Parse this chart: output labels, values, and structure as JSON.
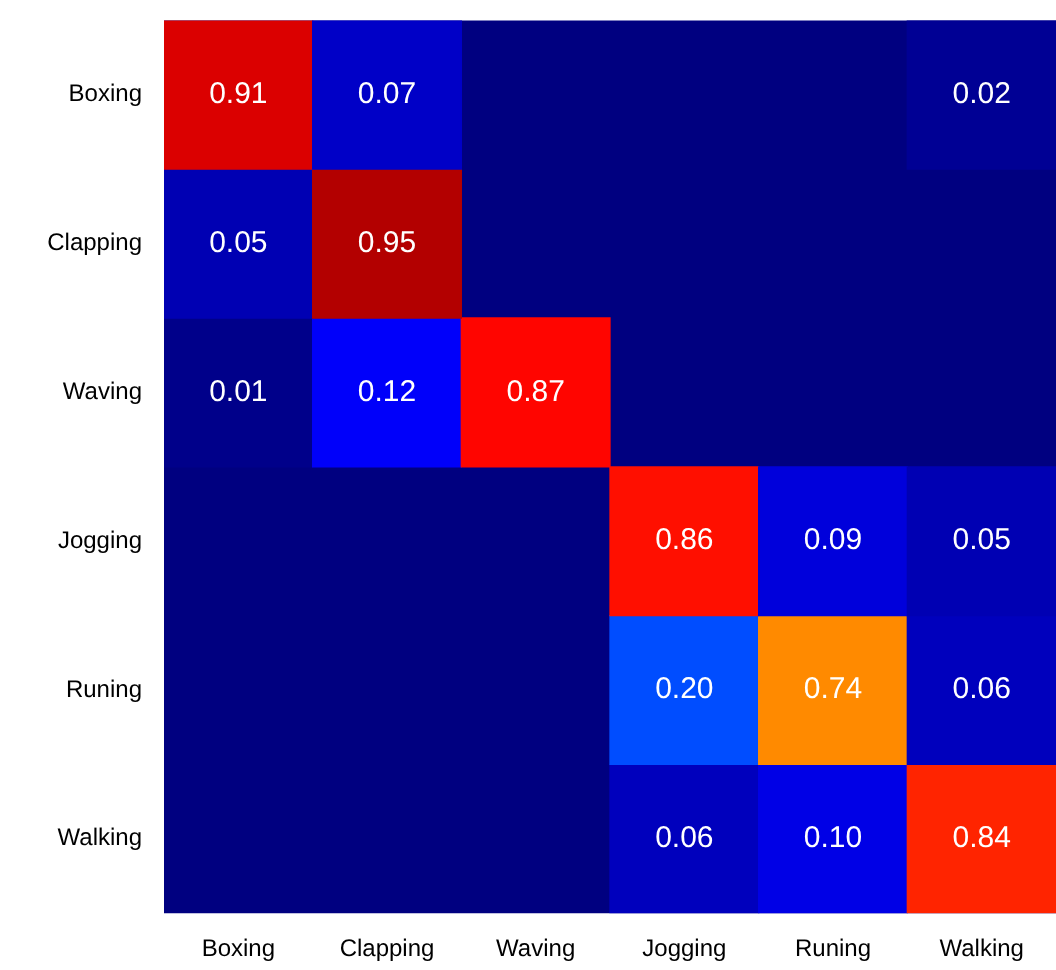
{
  "chart_data": {
    "type": "heatmap",
    "categories": [
      "Boxing",
      "Clapping",
      "Waving",
      "Jogging",
      "Runing",
      "Walking"
    ],
    "y_categories": [
      "Boxing",
      "Clapping",
      "Waving",
      "Jogging",
      "Runing",
      "Walking"
    ],
    "cells": [
      [
        0.91,
        0.07,
        null,
        null,
        null,
        0.02
      ],
      [
        0.05,
        0.95,
        null,
        null,
        null,
        null
      ],
      [
        0.01,
        0.12,
        0.87,
        null,
        null,
        null
      ],
      [
        null,
        null,
        null,
        0.86,
        0.09,
        0.05
      ],
      [
        null,
        null,
        null,
        0.2,
        0.74,
        0.06
      ],
      [
        null,
        null,
        null,
        0.06,
        0.1,
        0.84
      ]
    ],
    "cell_labels": [
      [
        "0.91",
        "0.07",
        null,
        null,
        null,
        "0.02"
      ],
      [
        "0.05",
        "0.95",
        null,
        null,
        null,
        null
      ],
      [
        "0.01",
        "0.12",
        "0.87",
        null,
        null,
        null
      ],
      [
        null,
        null,
        null,
        "0.86",
        "0.09",
        "0.05"
      ],
      [
        null,
        null,
        null,
        "0.20",
        "0.74",
        "0.06"
      ],
      [
        null,
        null,
        null,
        "0.06",
        "0.10",
        "0.84"
      ]
    ]
  }
}
